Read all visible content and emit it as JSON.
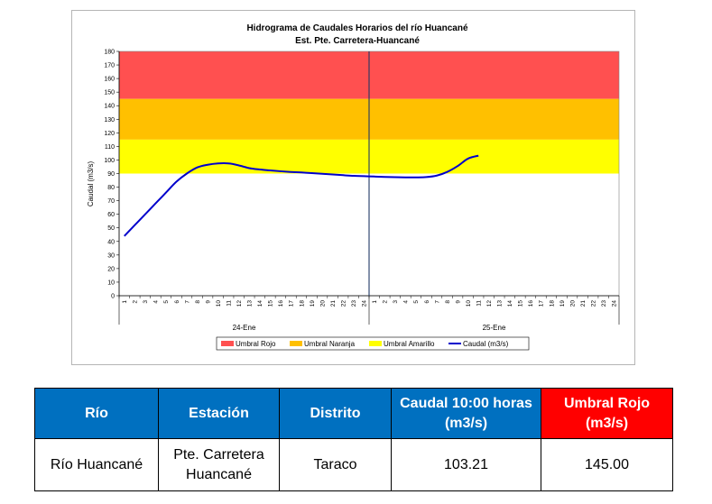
{
  "chart_data": {
    "type": "line",
    "title": "Hidrograma de Caudales Horarios del río Huancané",
    "subtitle": "Est. Pte. Carretera-Huancané",
    "ylabel": "Caudal  (m3/s)",
    "ylim": [
      0,
      180
    ],
    "yticks": [
      "0",
      "10",
      "20",
      "30",
      "40",
      "50",
      "60",
      "70",
      "80",
      "90",
      "100",
      "110",
      "120",
      "130",
      "140",
      "150",
      "160",
      "170",
      "180"
    ],
    "xticks": [
      "1",
      "2",
      "3",
      "4",
      "5",
      "6",
      "7",
      "8",
      "9",
      "10",
      "11",
      "12",
      "13",
      "14",
      "15",
      "16",
      "17",
      "18",
      "19",
      "20",
      "21",
      "22",
      "23",
      "24",
      "1",
      "2",
      "3",
      "4",
      "5",
      "6",
      "7",
      "8",
      "9",
      "10",
      "11",
      "12",
      "13",
      "14",
      "15",
      "16",
      "17",
      "18",
      "19",
      "20",
      "21",
      "22",
      "23",
      "24"
    ],
    "day_labels": [
      "24-Ene",
      "25-Ene"
    ],
    "thresholds": [
      {
        "name": "Umbral Rojo",
        "from": 145,
        "to": 180,
        "color": "#ff5050"
      },
      {
        "name": "Umbral Naranja",
        "from": 115,
        "to": 145,
        "color": "#ffc000"
      },
      {
        "name": "Umbral Amarillo",
        "from": 90,
        "to": 115,
        "color": "#ffff00"
      }
    ],
    "series": [
      {
        "name": "Caudal (m3/s)",
        "color": "#0000cc",
        "x": [
          1,
          2,
          3,
          4,
          5,
          6,
          7,
          8,
          9,
          10,
          11,
          12,
          13,
          14,
          15,
          16,
          17,
          18,
          19,
          20,
          21,
          22,
          23,
          24,
          25,
          26,
          27,
          28,
          29,
          30,
          31,
          32,
          33,
          34,
          35
        ],
        "values": [
          44,
          52,
          60,
          68,
          76,
          84,
          90,
          94.5,
          96.5,
          97.5,
          97.5,
          96,
          94,
          93,
          92.3,
          91.7,
          91.2,
          90.8,
          90.3,
          89.8,
          89.3,
          88.8,
          88.3,
          88.1,
          87.8,
          87.5,
          87.3,
          87.2,
          87.2,
          87.4,
          88.5,
          91.2,
          95.5,
          101,
          103.21
        ]
      }
    ],
    "legend": [
      "Umbral Rojo",
      "Umbral Naranja",
      "Umbral Amarillo",
      "Caudal (m3/s)"
    ],
    "legend_position": "bottom",
    "grid": false
  },
  "table": {
    "headers": [
      "Río",
      "Estación",
      "Distrito",
      "Caudal  10:00 horas (m3/s)",
      "Umbral Rojo (m3/s)"
    ],
    "row": [
      "Río Huancané",
      "Pte. Carretera Huancané",
      "Taraco",
      "103.21",
      "145.00"
    ]
  }
}
